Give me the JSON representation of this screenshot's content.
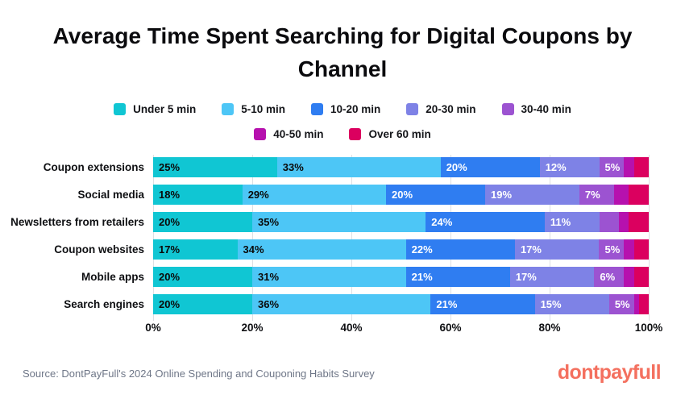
{
  "title": "Average Time Spent Searching for Digital Coupons by Channel",
  "footer": {
    "source": "Source: DontPayFull's 2024 Online Spending and Couponing Habits Survey",
    "brand": "dontpayfull"
  },
  "colors": {
    "brand_logo": "#F4705F",
    "source_text": "#6E7687",
    "title_text": "#0B0B0E",
    "gridline": "#DDE0E4",
    "background": "#FFFFFF"
  },
  "chart_data": {
    "type": "bar",
    "variant": "stacked-horizontal-100pct",
    "title": "Average Time Spent Searching for Digital Coupons by Channel",
    "categories": [
      "Coupon extensions",
      "Social media",
      "Newsletters from retailers",
      "Coupon websites",
      "Mobile apps",
      "Search engines"
    ],
    "series": [
      {
        "name": "Under 5 min",
        "color": "#10C6D3",
        "value_label_color": "#0A0A0A",
        "values": [
          25,
          18,
          20,
          17,
          20,
          20
        ]
      },
      {
        "name": "5-10 min",
        "color": "#4DC6F6",
        "value_label_color": "#0A0A0A",
        "values": [
          33,
          29,
          35,
          34,
          31,
          36
        ]
      },
      {
        "name": "10-20 min",
        "color": "#2F7DF1",
        "value_label_color": "#FFFFFF",
        "values": [
          20,
          20,
          24,
          22,
          21,
          21
        ]
      },
      {
        "name": "20-30 min",
        "color": "#7E82E6",
        "value_label_color": "#FFFFFF",
        "values": [
          12,
          19,
          11,
          17,
          17,
          15
        ]
      },
      {
        "name": "30-40 min",
        "color": "#9C53D1",
        "value_label_color": "#FFFFFF",
        "values": [
          5,
          7,
          4,
          5,
          6,
          5
        ]
      },
      {
        "name": "40-50 min",
        "color": "#B611AE",
        "value_label_color": "#FFFFFF",
        "values": [
          2,
          3,
          2,
          2,
          2,
          1
        ]
      },
      {
        "name": "Over 60 min",
        "color": "#DB005F",
        "value_label_color": "#FFFFFF",
        "values": [
          3,
          4,
          4,
          3,
          3,
          2
        ]
      }
    ],
    "data_label_unit": "%",
    "data_label_min_value": 5,
    "x_ticks": [
      "0%",
      "20%",
      "40%",
      "60%",
      "80%",
      "100%"
    ],
    "xlim": [
      0,
      100
    ],
    "grid": "vertical",
    "legend_position": "top",
    "legend_rows": [
      [
        0,
        1,
        2,
        3,
        4
      ],
      [
        5,
        6
      ]
    ]
  }
}
